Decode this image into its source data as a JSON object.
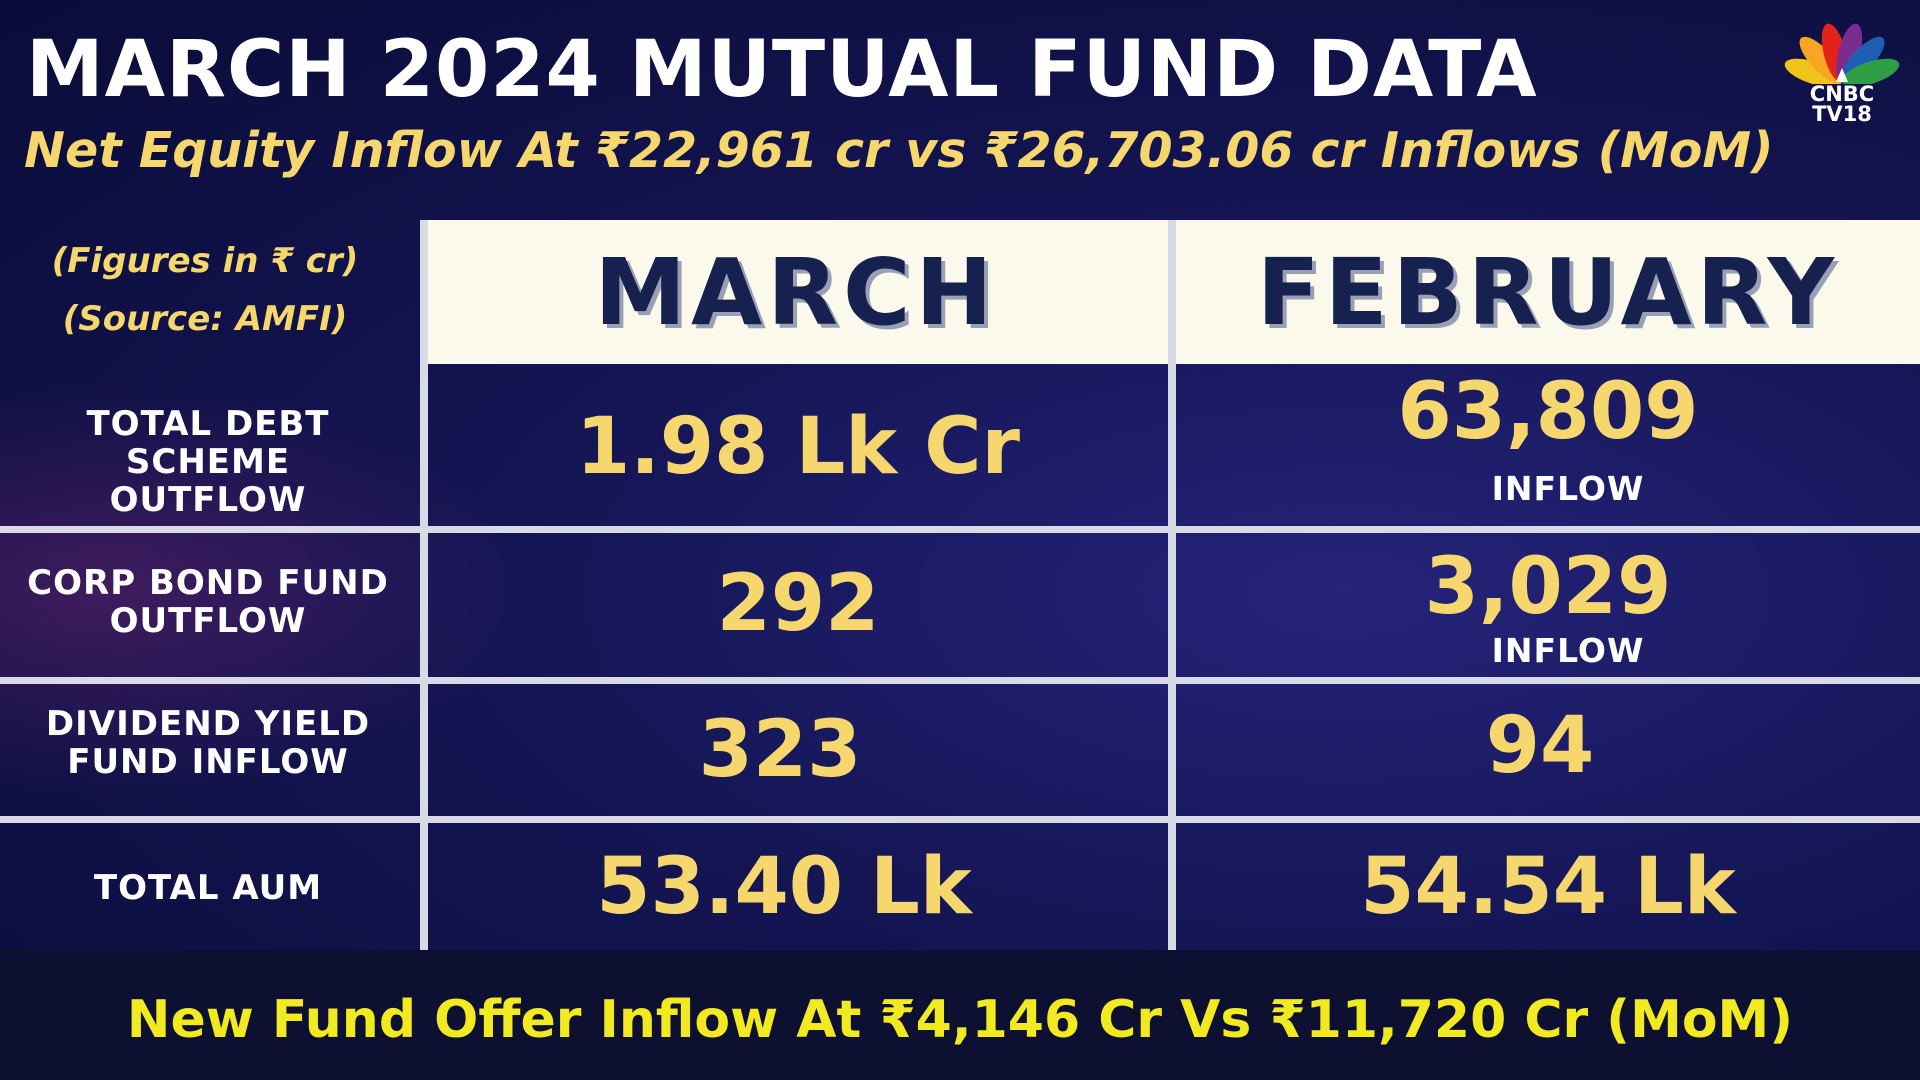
{
  "header": {
    "title": "MARCH 2024 MUTUAL FUND DATA",
    "subtitle": "Net Equity Inflow At ₹22,961 cr vs ₹26,703.06 cr Inflows (MoM)"
  },
  "logo": {
    "line1": "CNBC",
    "line2": "TV18",
    "colors": [
      "#f6a623",
      "#e2231a",
      "#7b2d8e",
      "#1f5fb3",
      "#2e9e44",
      "#f0c419"
    ]
  },
  "notes": {
    "figures": "(Figures in ₹ cr)",
    "source": "(Source: AMFI)"
  },
  "columns": [
    "MARCH",
    "FEBRUARY"
  ],
  "rows": [
    {
      "label": "TOTAL DEBT SCHEME OUTFLOW",
      "march": "1.98 Lk Cr",
      "february": "63,809",
      "february_tag": "INFLOW"
    },
    {
      "label": "CORP BOND FUND OUTFLOW",
      "march": "292",
      "february": "3,029",
      "february_tag": "INFLOW"
    },
    {
      "label": "DIVIDEND YIELD FUND INFLOW",
      "march": "323",
      "february": "94"
    },
    {
      "label": "TOTAL AUM",
      "march": "53.40 Lk",
      "february": "54.54 Lk"
    }
  ],
  "footer": "New Fund Offer Inflow At ₹4,146 Cr Vs ₹11,720 Cr (MoM)",
  "colors": {
    "accent_yellow": "#f5d76e",
    "footer_yellow": "#f2ea21",
    "header_bg": "#fbf9ec",
    "navy": "#16214f"
  }
}
